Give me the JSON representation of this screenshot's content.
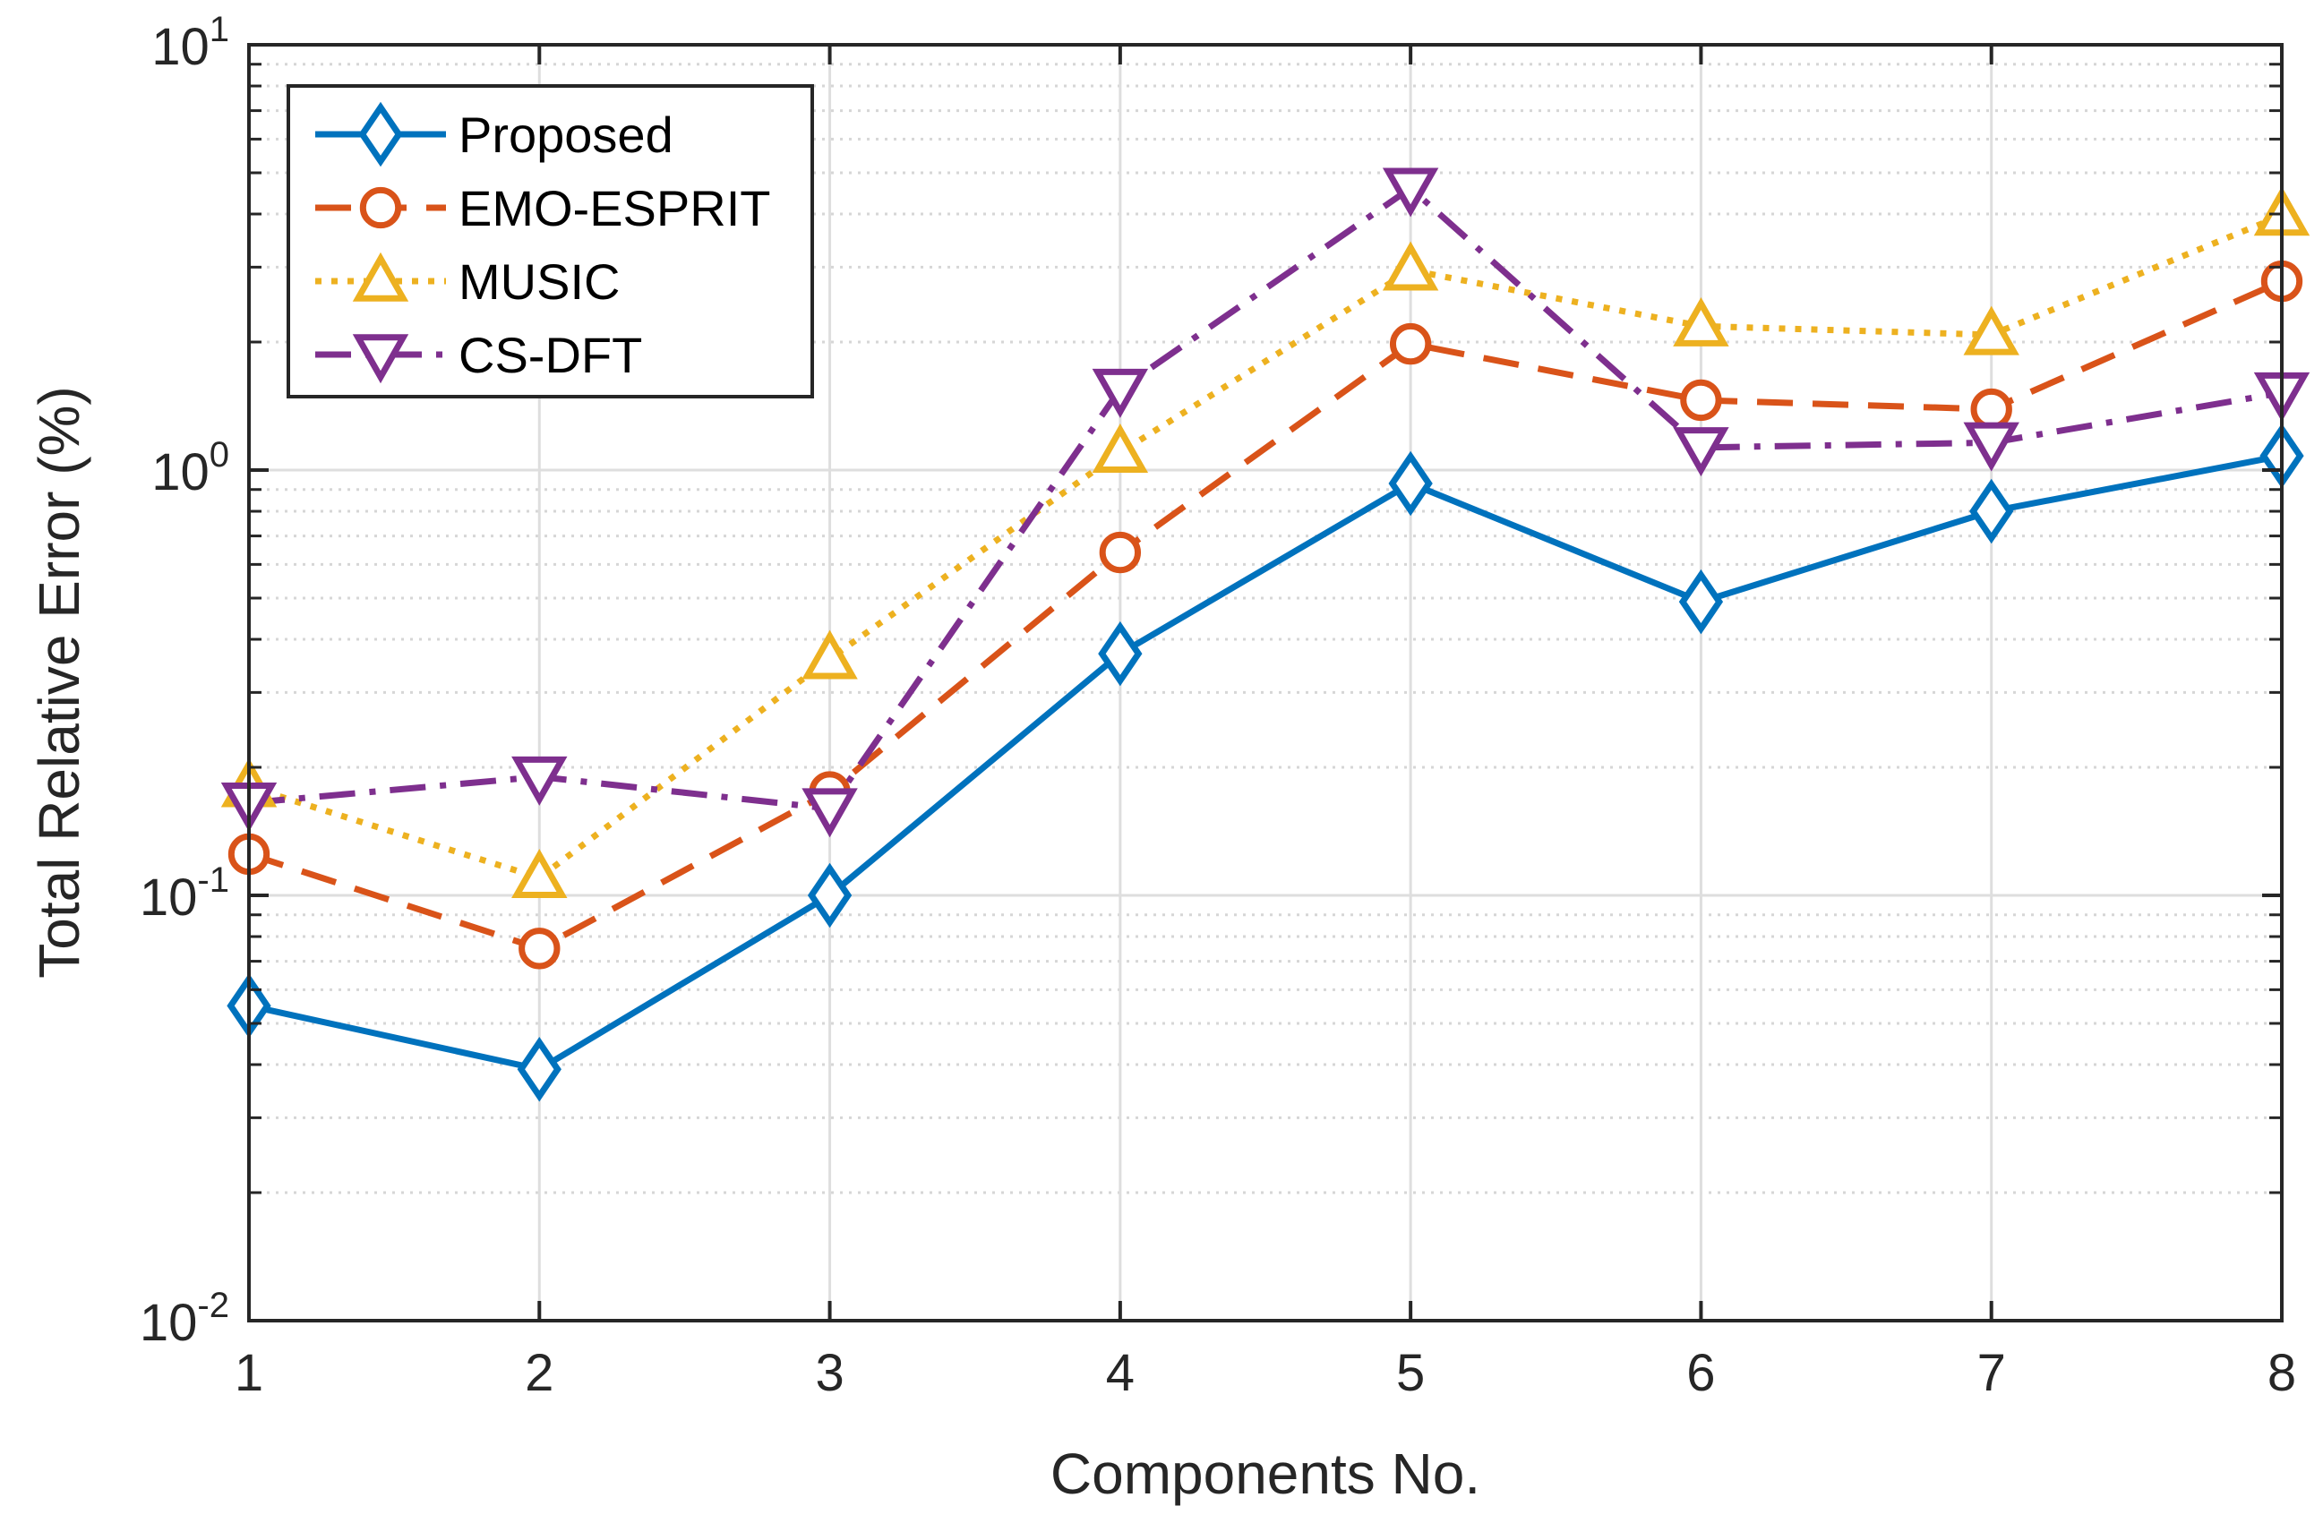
{
  "chart_data": {
    "type": "line",
    "title": "",
    "xlabel": "Components No.",
    "ylabel": "Total Relative Error (%)",
    "yscale": "log",
    "x": [
      1,
      2,
      3,
      4,
      5,
      6,
      7,
      8
    ],
    "xlim": [
      1,
      8
    ],
    "ylim": [
      0.01,
      10
    ],
    "x_ticks": [
      "1",
      "2",
      "3",
      "4",
      "5",
      "6",
      "7",
      "8"
    ],
    "y_ticks": [
      {
        "value": 0.01,
        "base": "10",
        "exp": "-2"
      },
      {
        "value": 0.1,
        "base": "10",
        "exp": "-1"
      },
      {
        "value": 1,
        "base": "10",
        "exp": "0"
      },
      {
        "value": 10,
        "base": "10",
        "exp": "1"
      }
    ],
    "grid": true,
    "minor_grid": true,
    "legend_position": "top-left",
    "series": [
      {
        "name": "Proposed",
        "color": "#0072BD",
        "line_style": "solid",
        "marker": "diamond",
        "values": [
          0.055,
          0.039,
          0.1,
          0.37,
          0.93,
          0.49,
          0.8,
          1.08
        ]
      },
      {
        "name": "EMO-ESPRIT",
        "color": "#D95319",
        "line_style": "dashed",
        "marker": "circle",
        "values": [
          0.125,
          0.075,
          0.175,
          0.64,
          1.98,
          1.46,
          1.39,
          2.78
        ]
      },
      {
        "name": "MUSIC",
        "color": "#EDB120",
        "line_style": "dotted",
        "marker": "triangle-up",
        "values": [
          0.18,
          0.11,
          0.36,
          1.1,
          2.95,
          2.18,
          2.08,
          3.97
        ]
      },
      {
        "name": "CS-DFT",
        "color": "#7E2F8E",
        "line_style": "dashdot",
        "marker": "triangle-down",
        "values": [
          0.165,
          0.19,
          0.16,
          1.55,
          4.6,
          1.13,
          1.16,
          1.52
        ]
      }
    ]
  }
}
